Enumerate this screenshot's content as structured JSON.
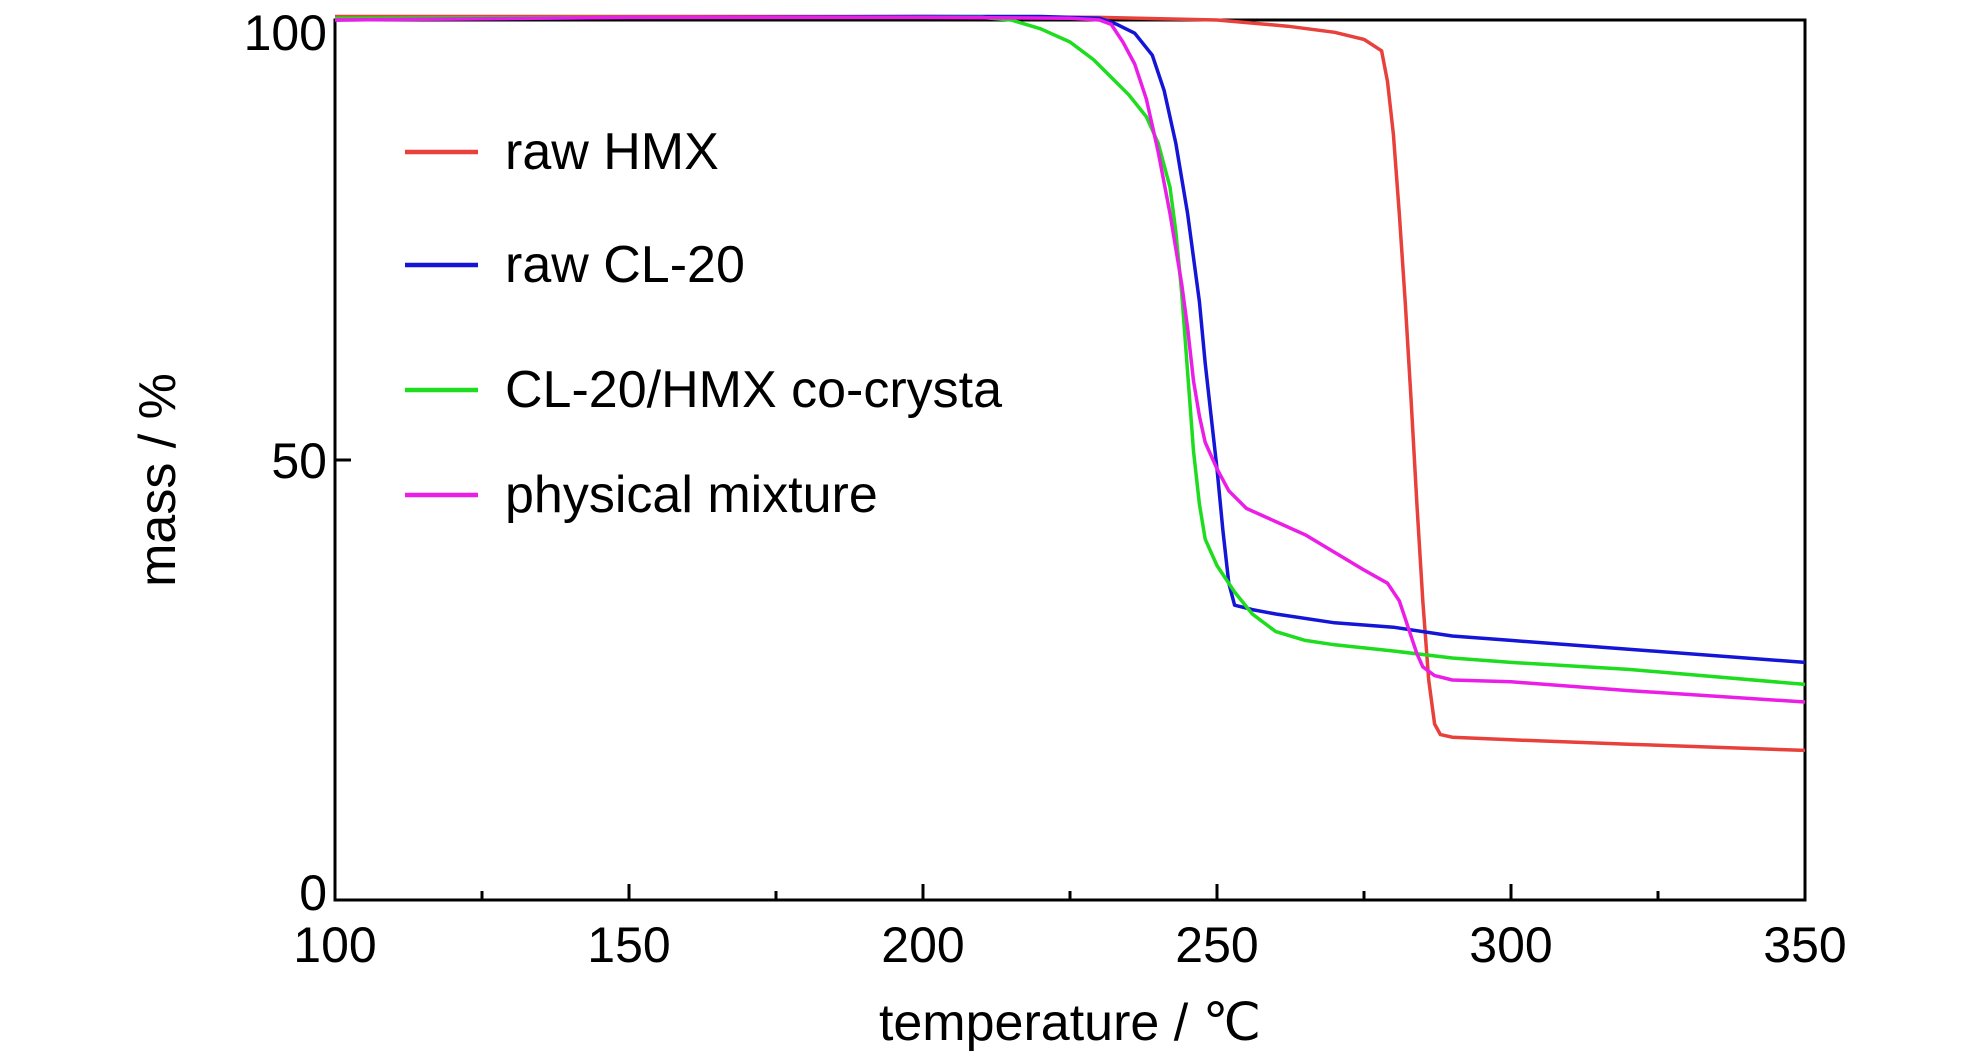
{
  "chart_data": {
    "type": "line",
    "title": "",
    "xlabel": "temperature / ℃",
    "ylabel": "mass / %",
    "xlim": [
      100,
      350
    ],
    "ylim": [
      0,
      100
    ],
    "x_ticks": [
      100,
      150,
      200,
      250,
      300,
      350
    ],
    "y_ticks": [
      0,
      50,
      100
    ],
    "grid": false,
    "legend_position": "upper-left",
    "series": [
      {
        "name": "raw HMX",
        "color": "#e8403a",
        "points": [
          [
            100,
            100.4
          ],
          [
            150,
            100.4
          ],
          [
            200,
            100.4
          ],
          [
            230,
            100.3
          ],
          [
            250,
            100
          ],
          [
            262,
            99.3
          ],
          [
            270,
            98.6
          ],
          [
            275,
            97.8
          ],
          [
            278,
            96.5
          ],
          [
            279,
            93
          ],
          [
            280,
            87
          ],
          [
            281,
            78
          ],
          [
            282,
            68
          ],
          [
            283,
            57
          ],
          [
            284,
            45
          ],
          [
            285,
            34
          ],
          [
            286,
            25
          ],
          [
            287,
            20
          ],
          [
            288,
            18.8
          ],
          [
            290,
            18.5
          ],
          [
            300,
            18.2
          ],
          [
            320,
            17.7
          ],
          [
            350,
            17
          ]
        ]
      },
      {
        "name": "raw CL-20",
        "color": "#1515d8",
        "points": [
          [
            100,
            100
          ],
          [
            150,
            100.3
          ],
          [
            200,
            100.4
          ],
          [
            220,
            100.4
          ],
          [
            230,
            100.2
          ],
          [
            233,
            99.5
          ],
          [
            236,
            98.5
          ],
          [
            239,
            96
          ],
          [
            241,
            92
          ],
          [
            243,
            86
          ],
          [
            245,
            78
          ],
          [
            247,
            68
          ],
          [
            248,
            61
          ],
          [
            249,
            55
          ],
          [
            250,
            49
          ],
          [
            251,
            42
          ],
          [
            252,
            36
          ],
          [
            253,
            33.5
          ],
          [
            256,
            33
          ],
          [
            260,
            32.5
          ],
          [
            270,
            31.5
          ],
          [
            280,
            31
          ],
          [
            290,
            30
          ],
          [
            300,
            29.5
          ],
          [
            320,
            28.5
          ],
          [
            350,
            27
          ]
        ]
      },
      {
        "name": "CL-20/HMX co-crysta",
        "color": "#1edc1e",
        "points": [
          [
            100,
            100.2
          ],
          [
            150,
            100.3
          ],
          [
            200,
            100.3
          ],
          [
            210,
            100.3
          ],
          [
            215,
            100
          ],
          [
            220,
            99
          ],
          [
            225,
            97.5
          ],
          [
            229,
            95.5
          ],
          [
            232,
            93.5
          ],
          [
            235,
            91.5
          ],
          [
            238,
            89
          ],
          [
            240,
            86
          ],
          [
            242,
            81
          ],
          [
            243,
            76
          ],
          [
            244,
            69
          ],
          [
            245,
            60
          ],
          [
            246,
            51
          ],
          [
            247,
            45
          ],
          [
            248,
            41
          ],
          [
            250,
            38
          ],
          [
            253,
            35
          ],
          [
            256,
            32.5
          ],
          [
            260,
            30.5
          ],
          [
            265,
            29.5
          ],
          [
            270,
            29
          ],
          [
            280,
            28.3
          ],
          [
            290,
            27.5
          ],
          [
            300,
            27
          ],
          [
            320,
            26.2
          ],
          [
            350,
            24.5
          ]
        ]
      },
      {
        "name": "physical mixture",
        "color": "#ea1ee6",
        "points": [
          [
            100,
            100
          ],
          [
            150,
            100.3
          ],
          [
            200,
            100.3
          ],
          [
            225,
            100.2
          ],
          [
            230,
            100
          ],
          [
            232,
            99.5
          ],
          [
            234,
            97.5
          ],
          [
            236,
            95
          ],
          [
            238,
            91
          ],
          [
            240,
            85
          ],
          [
            242,
            78
          ],
          [
            244,
            70
          ],
          [
            245,
            65
          ],
          [
            246,
            59
          ],
          [
            247,
            55
          ],
          [
            248,
            52
          ],
          [
            250,
            49
          ],
          [
            252,
            46.5
          ],
          [
            255,
            44.5
          ],
          [
            260,
            43
          ],
          [
            265,
            41.5
          ],
          [
            270,
            39.5
          ],
          [
            275,
            37.5
          ],
          [
            279,
            36
          ],
          [
            281,
            34
          ],
          [
            282,
            32
          ],
          [
            283,
            30
          ],
          [
            284,
            28
          ],
          [
            285,
            26.5
          ],
          [
            287,
            25.5
          ],
          [
            290,
            25
          ],
          [
            300,
            24.8
          ],
          [
            320,
            23.8
          ],
          [
            350,
            22.5
          ]
        ]
      }
    ]
  }
}
